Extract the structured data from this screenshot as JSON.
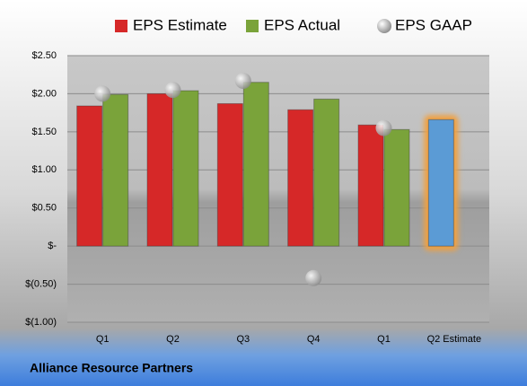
{
  "chart_data": {
    "type": "bar",
    "categories": [
      "Q1",
      "Q2",
      "Q3",
      "Q4",
      "Q1",
      "Q2 Estimate"
    ],
    "series": [
      {
        "name": "EPS Estimate",
        "color": "#d62828",
        "values": [
          1.84,
          2.0,
          1.87,
          1.79,
          1.59,
          1.66
        ],
        "point_colors": [
          null,
          null,
          null,
          null,
          null,
          "#5b9bd5"
        ]
      },
      {
        "name": "EPS Actual",
        "color": "#7aa33a",
        "values": [
          1.99,
          2.04,
          2.15,
          1.93,
          1.53,
          null
        ]
      },
      {
        "name": "EPS GAAP",
        "color": "#a0a0a0",
        "mark": "circle",
        "values": [
          2.0,
          2.05,
          2.17,
          -0.42,
          1.55,
          null
        ]
      }
    ],
    "ylim": [
      -1,
      2.5
    ],
    "yticks": [
      {
        "value": -1,
        "label": "$(1.00)"
      },
      {
        "value": -0.5,
        "label": "$(0.50)"
      },
      {
        "value": 0,
        "label": "$-"
      },
      {
        "value": 0.5,
        "label": "$0.50"
      },
      {
        "value": 1,
        "label": "$1.00"
      },
      {
        "value": 1.5,
        "label": "$1.50"
      },
      {
        "value": 2,
        "label": "$2.00"
      },
      {
        "value": 2.5,
        "label": "$2.50"
      }
    ],
    "grid": true,
    "legend": "top",
    "footer": "Alliance Resource Partners"
  }
}
